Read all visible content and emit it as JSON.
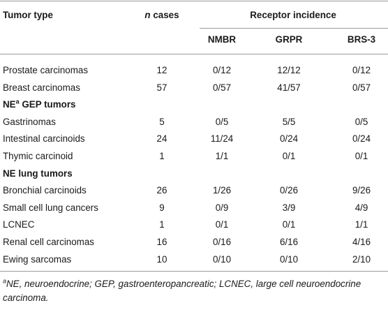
{
  "header": {
    "tumor_type": "Tumor type",
    "n_cases": {
      "n": "n",
      "rest": " cases"
    },
    "receptor_incidence": "Receptor incidence",
    "receptors": [
      "NMBR",
      "GRPR",
      "BRS-3"
    ]
  },
  "rows": [
    [
      "Prostate carcinomas",
      12,
      "0/12",
      "12/12",
      "0/12"
    ],
    [
      "Breast carcinomas",
      57,
      "0/57",
      "41/57",
      "0/57"
    ],
    {
      "label": "NE",
      "sup": "a",
      "rest": " GEP tumors"
    },
    [
      "Gastrinomas",
      5,
      "0/5",
      "5/5",
      "0/5"
    ],
    [
      "Intestinal carcinoids",
      24,
      "11/24",
      "0/24",
      "0/24"
    ],
    [
      "Thymic carcinoid",
      1,
      "1/1",
      "0/1",
      "0/1"
    ],
    {
      "label": "NE lung tumors"
    },
    [
      "Bronchial carcinoids",
      26,
      "1/26",
      "0/26",
      "9/26"
    ],
    [
      "Small cell lung cancers",
      9,
      "0/9",
      "3/9",
      "4/9"
    ],
    [
      "LCNEC",
      1,
      "0/1",
      "0/1",
      "1/1"
    ],
    [
      "Renal cell carcinomas",
      16,
      "0/16",
      "6/16",
      "4/16"
    ],
    [
      "Ewing sarcomas",
      10,
      "0/10",
      "0/10",
      "2/10"
    ]
  ],
  "footnote": {
    "sup": "a",
    "text": "NE, neuroendocrine; GEP, gastroenteropancreatic; LCNEC, large cell neuroendocrine carcinoma."
  }
}
